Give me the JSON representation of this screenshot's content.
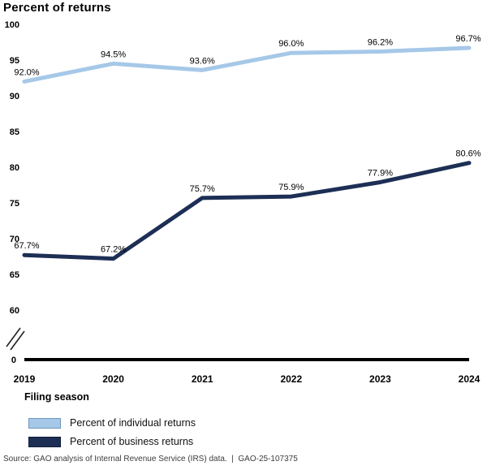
{
  "title": "Percent of returns",
  "chart_data": {
    "type": "line",
    "title": "Percent of returns",
    "categories": [
      "2019",
      "2020",
      "2021",
      "2022",
      "2023",
      "2024"
    ],
    "series": [
      {
        "name": "Percent of individual returns",
        "color": "#a6c8e8",
        "border_color": "#7097bc",
        "values": [
          92.0,
          94.5,
          93.6,
          96.0,
          96.2,
          96.7
        ]
      },
      {
        "name": "Percent of business returns",
        "color": "#1d2f55",
        "border_color": "#0e1c38",
        "values": [
          67.7,
          67.2,
          75.7,
          75.9,
          77.9,
          80.6
        ]
      }
    ],
    "xlabel": "Filing season",
    "ylabel": "",
    "y_ticks": [
      100,
      95,
      90,
      85,
      80,
      75,
      70,
      65,
      60
    ],
    "y_base_tick": "0",
    "y_axis_break": true,
    "ylim_shown": [
      60,
      100
    ],
    "grid": false,
    "legend_position": "bottom-left",
    "label_decimals": 1,
    "label_suffix": "%",
    "axis_color": "#000000"
  },
  "legend": {
    "items": [
      {
        "label": "Percent of individual returns"
      },
      {
        "label": "Percent of business returns"
      }
    ]
  },
  "source": "Source: GAO analysis of Internal Revenue Service (IRS) data.  |  GAO-25-107375"
}
